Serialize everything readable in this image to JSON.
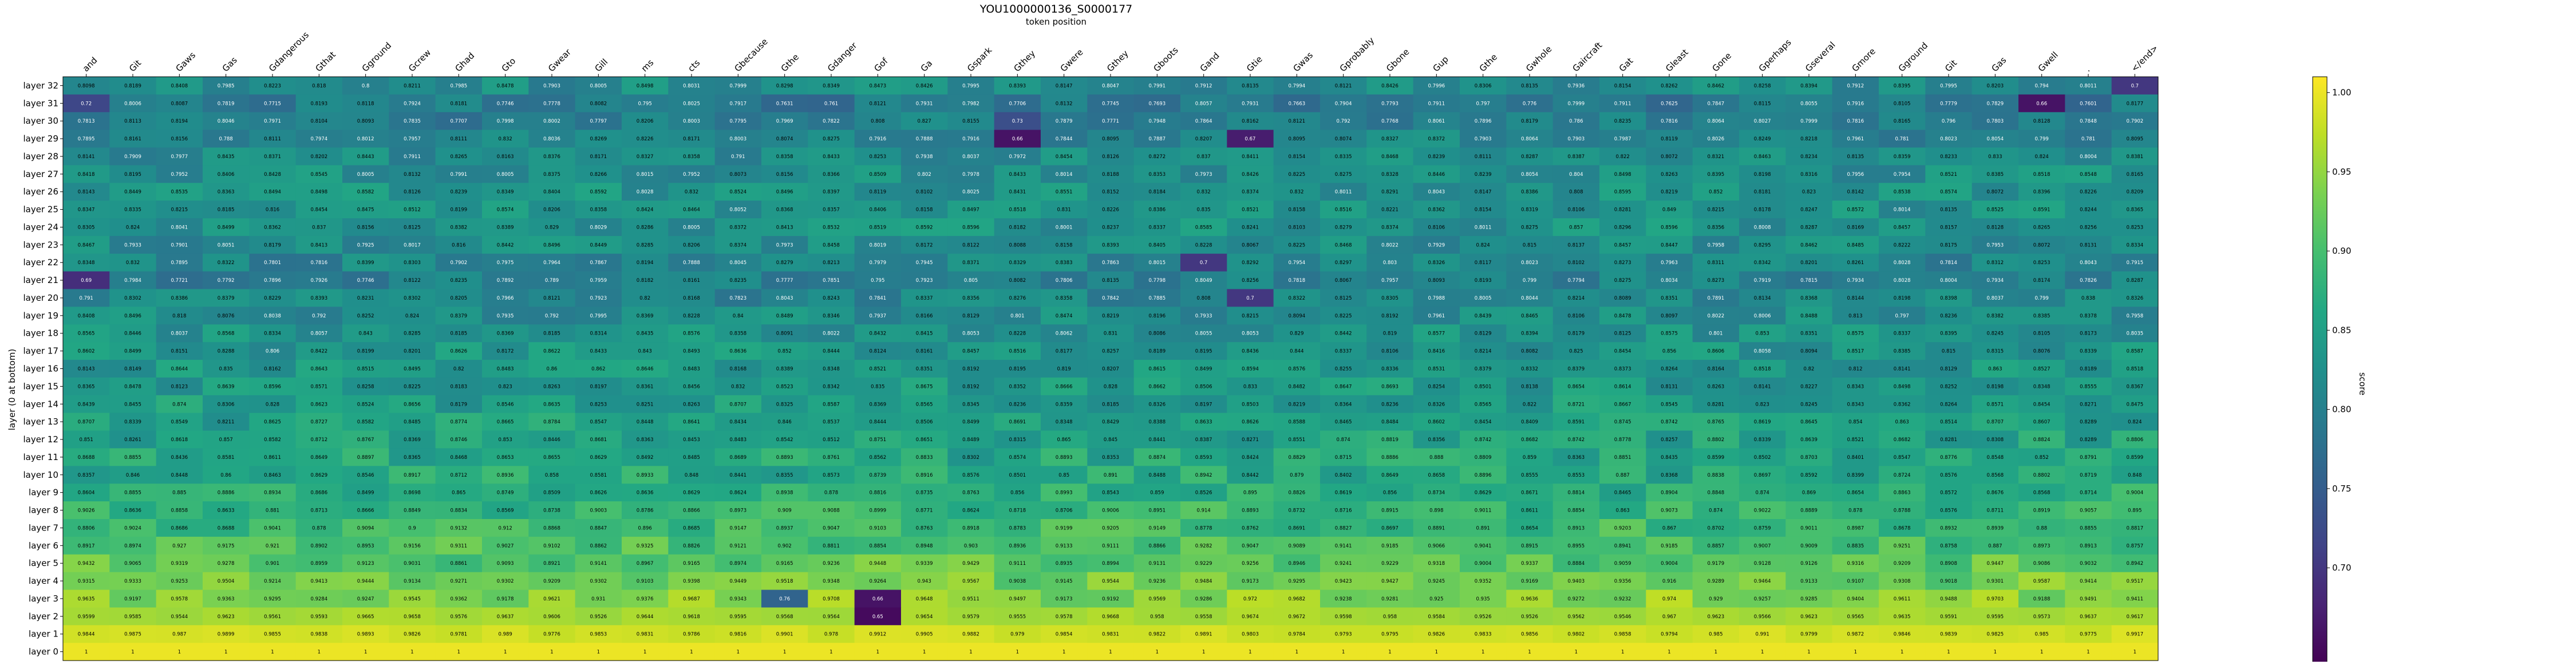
{
  "chart_data": {
    "type": "heatmap",
    "title": "YOU1000000136_S0000177",
    "subtitle": "token position",
    "xlabel": "token position",
    "ylabel": "layer (0 at bottom)",
    "colorbar_label": "score",
    "colormap": "viridis",
    "vmin": 0.64,
    "vmax": 1.01,
    "colorbar_ticks": [
      0.7,
      0.75,
      0.8,
      0.85,
      0.9,
      0.95,
      1.0
    ],
    "colorbar_tick_labels": [
      "0.70",
      "0.75",
      "0.80",
      "0.85",
      "0.90",
      "0.95",
      "1.00"
    ],
    "x_tick_labels": [
      "and",
      "Git",
      "Gaws",
      "Gas",
      "Gdangerous",
      "Gthat",
      "Gground",
      "Gcrew",
      "Ghad",
      "Gto",
      "Gwear",
      "Gill",
      "ms",
      "cts",
      "Gbecause",
      "Gthe",
      "Gdanger",
      "Gof",
      "Ga",
      "Gspark",
      "Gthey",
      "Gwere",
      "Gthey",
      "Gboots",
      "Gand",
      "Gtie",
      "Gwas",
      "Gprobably",
      "Gbone",
      "Gup",
      "Gthe",
      "Gwhole",
      "Gaircraft",
      "Gat",
      "Gleast",
      "Gone",
      "Gperhaps",
      "Gseveral",
      "Gmore",
      "Gground",
      "Git",
      "Gas",
      "Gwell",
      ".",
      "</end>"
    ],
    "y_tick_labels": [
      "layer 32",
      "layer 31",
      "layer 30",
      "layer 29",
      "layer 28",
      "layer 27",
      "layer 26",
      "layer 25",
      "layer 24",
      "layer 23",
      "layer 22",
      "layer 21",
      "layer 20",
      "layer 19",
      "layer 18",
      "layer 17",
      "layer 16",
      "layer 15",
      "layer 14",
      "layer 13",
      "layer 12",
      "layer 11",
      "layer 10",
      "layer 9",
      "layer 8",
      "layer 7",
      "layer 6",
      "layer 5",
      "layer 4",
      "layer 3",
      "layer 2",
      "layer 1",
      "layer 0"
    ],
    "layer_base_values": {
      "32": 0.82,
      "31": 0.79,
      "30": 0.8,
      "29": 0.81,
      "28": 0.82,
      "27": 0.825,
      "26": 0.83,
      "25": 0.83,
      "24": 0.83,
      "23": 0.82,
      "22": 0.81,
      "21": 0.8,
      "20": 0.81,
      "19": 0.82,
      "18": 0.83,
      "17": 0.835,
      "16": 0.84,
      "15": 0.84,
      "14": 0.845,
      "13": 0.85,
      "12": 0.855,
      "11": 0.86,
      "10": 0.865,
      "9": 0.875,
      "8": 0.885,
      "7": 0.895,
      "6": 0.905,
      "5": 0.915,
      "4": 0.93,
      "3": 0.945,
      "2": 0.96,
      "1": 0.985,
      "0": 1.0
    },
    "notable_cells": [
      {
        "layer": 32,
        "token": "</end>",
        "value": 0.7
      },
      {
        "layer": 31,
        "token": "and",
        "value": 0.72
      },
      {
        "layer": 31,
        "token": "Gwell",
        "value": 0.66
      },
      {
        "layer": 30,
        "token": "Gthey",
        "value": 0.73
      },
      {
        "layer": 29,
        "token": "Gthey",
        "value": 0.66
      },
      {
        "layer": 29,
        "token": "Gtie",
        "value": 0.67
      },
      {
        "layer": 22,
        "token": "Gand",
        "value": 0.7
      },
      {
        "layer": 21,
        "token": "and",
        "value": 0.69
      },
      {
        "layer": 20,
        "token": "Gtie",
        "value": 0.7
      },
      {
        "layer": 3,
        "token": "Gof",
        "value": 0.66
      },
      {
        "layer": 3,
        "token": "Gthe",
        "value": 0.76
      },
      {
        "layer": 2,
        "token": "Gof",
        "value": 0.65
      },
      {
        "layer": 0,
        "token": "and",
        "value": 1.0
      }
    ]
  }
}
